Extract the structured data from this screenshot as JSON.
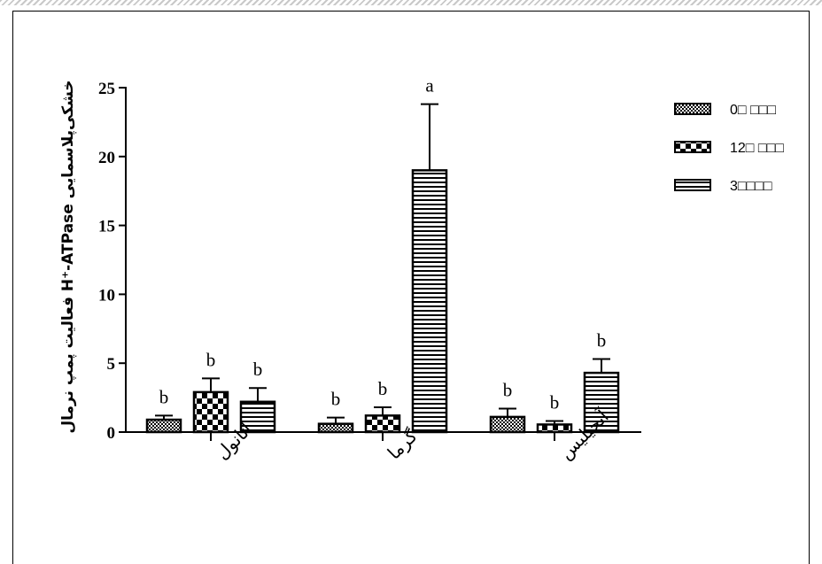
{
  "chart_data": {
    "type": "bar",
    "ylabel": "خشکی‌پلاسمایی H⁺-ATPase فعالیت پمپ نرمال",
    "ylim": [
      0,
      25
    ],
    "yticks": [
      "0",
      "5",
      "10",
      "15",
      "20",
      "25"
    ],
    "categories": [
      "اتانول",
      "گرما",
      "آنجیلیس"
    ],
    "series": [
      {
        "name": "0□ □□□",
        "pattern": "dots",
        "values": [
          0.9,
          0.6,
          1.1
        ],
        "errors": [
          0.3,
          0.45,
          0.6
        ],
        "labels": [
          "b",
          "b",
          "b"
        ]
      },
      {
        "name": "12□ □□□",
        "pattern": "checker",
        "values": [
          2.9,
          1.2,
          0.55
        ],
        "errors": [
          1.0,
          0.6,
          0.25
        ],
        "labels": [
          "b",
          "b",
          "b"
        ]
      },
      {
        "name": "3□□□□",
        "pattern": "hstripes",
        "values": [
          2.2,
          19.0,
          4.3
        ],
        "errors": [
          1.0,
          4.8,
          1.0
        ],
        "labels": [
          "b",
          "a",
          "b"
        ]
      }
    ],
    "legend_position": "top-right",
    "grid": false
  }
}
